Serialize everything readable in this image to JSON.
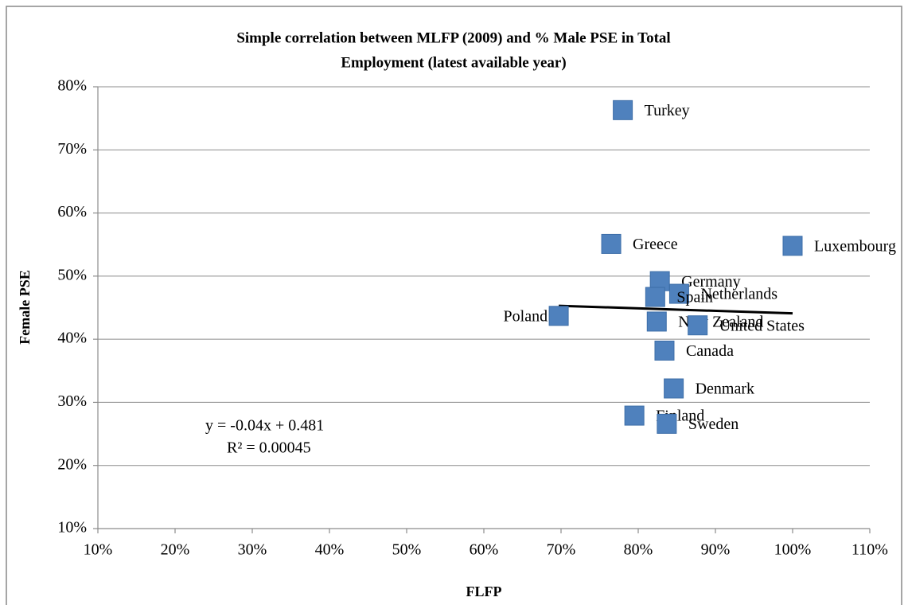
{
  "chart_data": {
    "type": "scatter",
    "title": [
      "Simple correlation between MLFP (2009) and % Male PSE in Total",
      "Employment (latest available year)"
    ],
    "xlabel": "FLFP",
    "ylabel": "Female PSE",
    "labels": [
      "Turkey",
      "Greece",
      "Luxembourg",
      "Germany",
      "Netherlands",
      "Spain",
      "Poland",
      "New Zealand",
      "United States",
      "Canada",
      "Denmark",
      "Finland",
      "Sweden"
    ],
    "x": [
      78.0,
      76.5,
      100.0,
      82.8,
      85.3,
      82.2,
      69.7,
      82.4,
      87.7,
      83.4,
      84.6,
      79.5,
      83.7
    ],
    "values": [
      76.3,
      55.1,
      54.8,
      49.2,
      47.2,
      46.7,
      43.7,
      42.8,
      42.2,
      38.2,
      32.2,
      27.9,
      26.6
    ],
    "color": "#4f81bd",
    "trendline": {
      "x": [
        69.7,
        100.0
      ],
      "values": [
        45.3,
        44.1
      ],
      "color": "#000000"
    },
    "annotations": [
      "y = -0.04x + 0.481",
      "R² = 0.00045"
    ],
    "xlim": [
      10,
      110
    ],
    "ylim": [
      10,
      80
    ],
    "xticks": [
      {
        "value": 10,
        "label": "10%"
      },
      {
        "value": 20,
        "label": "20%"
      },
      {
        "value": 30,
        "label": "30%"
      },
      {
        "value": 40,
        "label": "40%"
      },
      {
        "value": 50,
        "label": "50%"
      },
      {
        "value": 60,
        "label": "60%"
      },
      {
        "value": 70,
        "label": "70%"
      },
      {
        "value": 80,
        "label": "80%"
      },
      {
        "value": 90,
        "label": "90%"
      },
      {
        "value": 100,
        "label": "100%"
      },
      {
        "value": 110,
        "label": "110%"
      }
    ],
    "yticks": [
      {
        "value": 10,
        "label": "10%"
      },
      {
        "value": 20,
        "label": "20%"
      },
      {
        "value": 30,
        "label": "30%"
      },
      {
        "value": 40,
        "label": "40%"
      },
      {
        "value": 50,
        "label": "50%"
      },
      {
        "value": 60,
        "label": "60%"
      },
      {
        "value": 70,
        "label": "70%"
      },
      {
        "value": 80,
        "label": "80%"
      }
    ],
    "grid": true
  }
}
